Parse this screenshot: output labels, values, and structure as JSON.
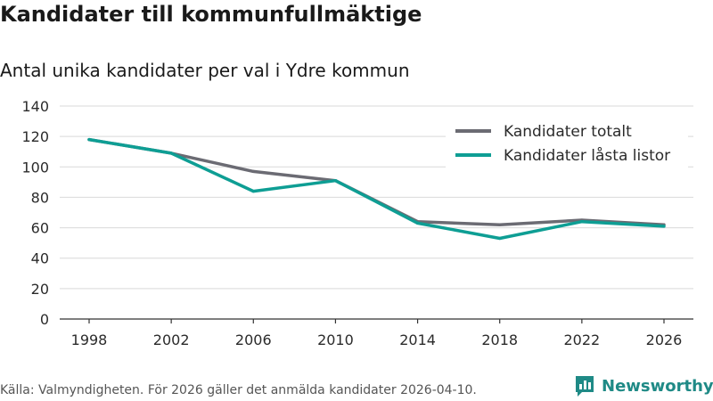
{
  "header": {
    "title": "Kandidater till kommunfullmäktige",
    "subtitle": "Antal unika kandidater per val i Ydre kommun"
  },
  "footer": {
    "source": "Källa: Valmyndigheten. För 2026 gäller det anmälda kandidater 2026-04-10.",
    "brand": "Newsworthy",
    "brand_color": "#1f8a86"
  },
  "chart_data": {
    "type": "line",
    "title": "Kandidater till kommunfullmäktige",
    "subtitle": "Antal unika kandidater per val i Ydre kommun",
    "categories": [
      "1998",
      "2002",
      "2006",
      "2010",
      "2014",
      "2018",
      "2022",
      "2026"
    ],
    "series": [
      {
        "name": "Kandidater totalt",
        "color": "#6b6b73",
        "values": [
          118,
          109,
          97,
          91,
          64,
          62,
          65,
          62
        ]
      },
      {
        "name": "Kandidater låsta listor",
        "color": "#0e9e94",
        "values": [
          118,
          109,
          84,
          91,
          63,
          53,
          64,
          61
        ]
      }
    ],
    "yticks": [
      "0",
      "20",
      "40",
      "60",
      "80",
      "100",
      "120",
      "140"
    ],
    "ylim": [
      0,
      140
    ],
    "xlabel": "",
    "ylabel": "",
    "grid": true,
    "legend_position": "top-right"
  }
}
